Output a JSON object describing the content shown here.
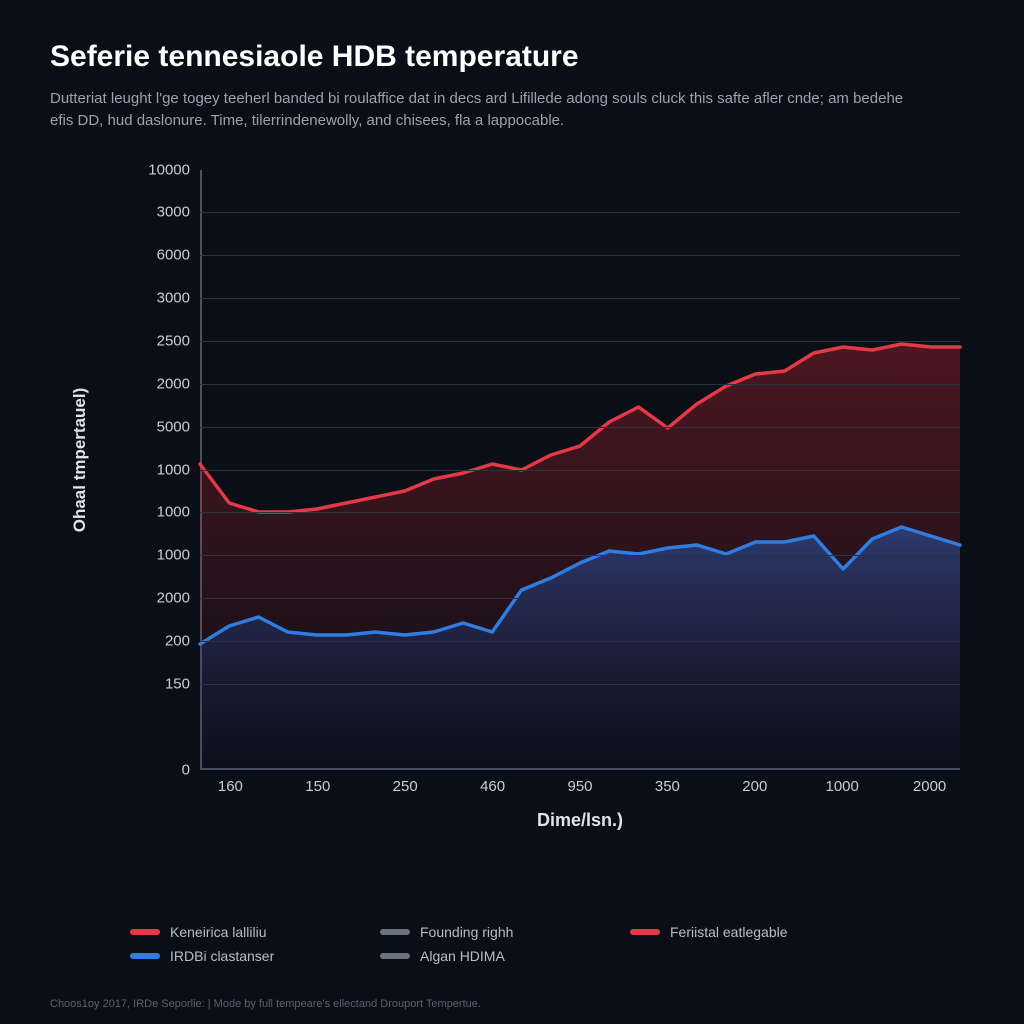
{
  "title": "Seferie tennesiaole HDB temperature",
  "subtitle": "Dutteriat leught l'ge togey teeherl banded bi roulaffice dat in decs ard Lifillede adong souls cluck this safte afler cnde; am bedehe efis DD, hud daslonure. Time, tilerrindenewolly, and chisees, fla a lappocable.",
  "ylabel": "Ohaal tmpertauel)",
  "xlabel": "Dime/lsn.)",
  "footer": "Choos1oy 2017, IRDe Seporlie: | Mode by full tempeare's ellectand Drouport Tempertue.",
  "chart": {
    "type": "area",
    "background_color": "#0a0e17",
    "grid_color": "#2a3240",
    "axis_color": "#4a5260",
    "tick_color": "#c8cdd6",
    "tick_fontsize": 15,
    "label_fontsize": 17,
    "title_fontsize": 30,
    "y_ticks": [
      "10000",
      "3000",
      "6000",
      "3000",
      "2500",
      "2000",
      "5000",
      "1000",
      "1000",
      "1000",
      "2000",
      "200",
      "150",
      "0"
    ],
    "y_tick_positions": [
      0.0,
      0.071,
      0.143,
      0.214,
      0.286,
      0.357,
      0.429,
      0.5,
      0.571,
      0.643,
      0.714,
      0.786,
      0.857,
      1.0
    ],
    "x_ticks": [
      "160",
      "150",
      "250",
      "460",
      "950",
      "350",
      "200",
      "1000",
      "2000"
    ],
    "x_tick_positions": [
      0.04,
      0.155,
      0.27,
      0.385,
      0.5,
      0.615,
      0.73,
      0.845,
      0.96
    ],
    "series": [
      {
        "name": "red",
        "stroke": "#e63946",
        "fill_top": "rgba(200,40,50,0.35)",
        "fill_bottom": "rgba(200,40,50,0.0)",
        "line_width": 3.5,
        "points_y": [
          0.49,
          0.555,
          0.57,
          0.57,
          0.565,
          0.555,
          0.545,
          0.535,
          0.515,
          0.505,
          0.49,
          0.5,
          0.475,
          0.46,
          0.42,
          0.395,
          0.43,
          0.39,
          0.36,
          0.34,
          0.335,
          0.305,
          0.295,
          0.3,
          0.29,
          0.295,
          0.295
        ]
      },
      {
        "name": "blue",
        "stroke": "#2f7de1",
        "fill_top": "rgba(40,90,180,0.55)",
        "fill_bottom": "rgba(20,40,90,0.08)",
        "line_width": 3.5,
        "points_y": [
          0.79,
          0.76,
          0.745,
          0.77,
          0.775,
          0.775,
          0.77,
          0.775,
          0.77,
          0.755,
          0.77,
          0.7,
          0.68,
          0.655,
          0.635,
          0.64,
          0.63,
          0.625,
          0.64,
          0.62,
          0.62,
          0.61,
          0.665,
          0.615,
          0.595,
          0.61,
          0.625
        ]
      }
    ]
  },
  "legend": {
    "rows": [
      [
        {
          "color": "#e63946",
          "label": "Keneirica lalliliu"
        },
        {
          "color": "#6b7280",
          "label": "Founding righh"
        },
        {
          "color": "#e63946",
          "label": "Feriistal eatlegable"
        }
      ],
      [
        {
          "color": "#2f7de1",
          "label": "IRDBi clastanser"
        },
        {
          "color": "#6b7280",
          "label": "Algan HDIMA"
        }
      ]
    ]
  }
}
